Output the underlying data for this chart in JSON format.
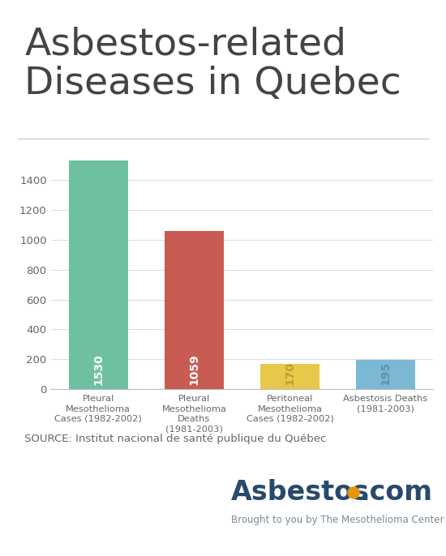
{
  "title_line1": "Asbestos-related",
  "title_line2": "Diseases in Quebec",
  "categories": [
    "Pleural\nMesothelioma\nCases (1982-2002)",
    "Pleural\nMesothelioma\nDeaths\n(1981-2003)",
    "Peritoneal\nMesothelioma\nCases (1982-2002)",
    "Asbestosis Deaths\n(1981-2003)"
  ],
  "values": [
    1530,
    1059,
    170,
    195
  ],
  "bar_colors": [
    "#6dc0a0",
    "#c95c52",
    "#e8c84a",
    "#7ab8d4"
  ],
  "value_labels": [
    "1530",
    "1059",
    "170",
    "195"
  ],
  "label_colors": [
    "#ffffff",
    "#ffffff",
    "#b8a030",
    "#6090b0"
  ],
  "ylim": [
    0,
    1600
  ],
  "yticks": [
    0,
    200,
    400,
    600,
    800,
    1000,
    1200,
    1400
  ],
  "source_text": "SOURCE: Institut nacional de santé publique du Québec",
  "background_color": "#ffffff",
  "title_fontsize": 34,
  "title_color": "#444444",
  "grid_color": "#dddddd",
  "axis_label_color": "#666666",
  "source_fontsize": 9.5,
  "asbestos_text": "Asbestos",
  "asbestos_dot_color": "#e8950a",
  "asbestos_com": ".com",
  "asbestos_subtitle": "Brought to you by The Mesothelioma Center",
  "asbestos_color": "#2a4a6b"
}
